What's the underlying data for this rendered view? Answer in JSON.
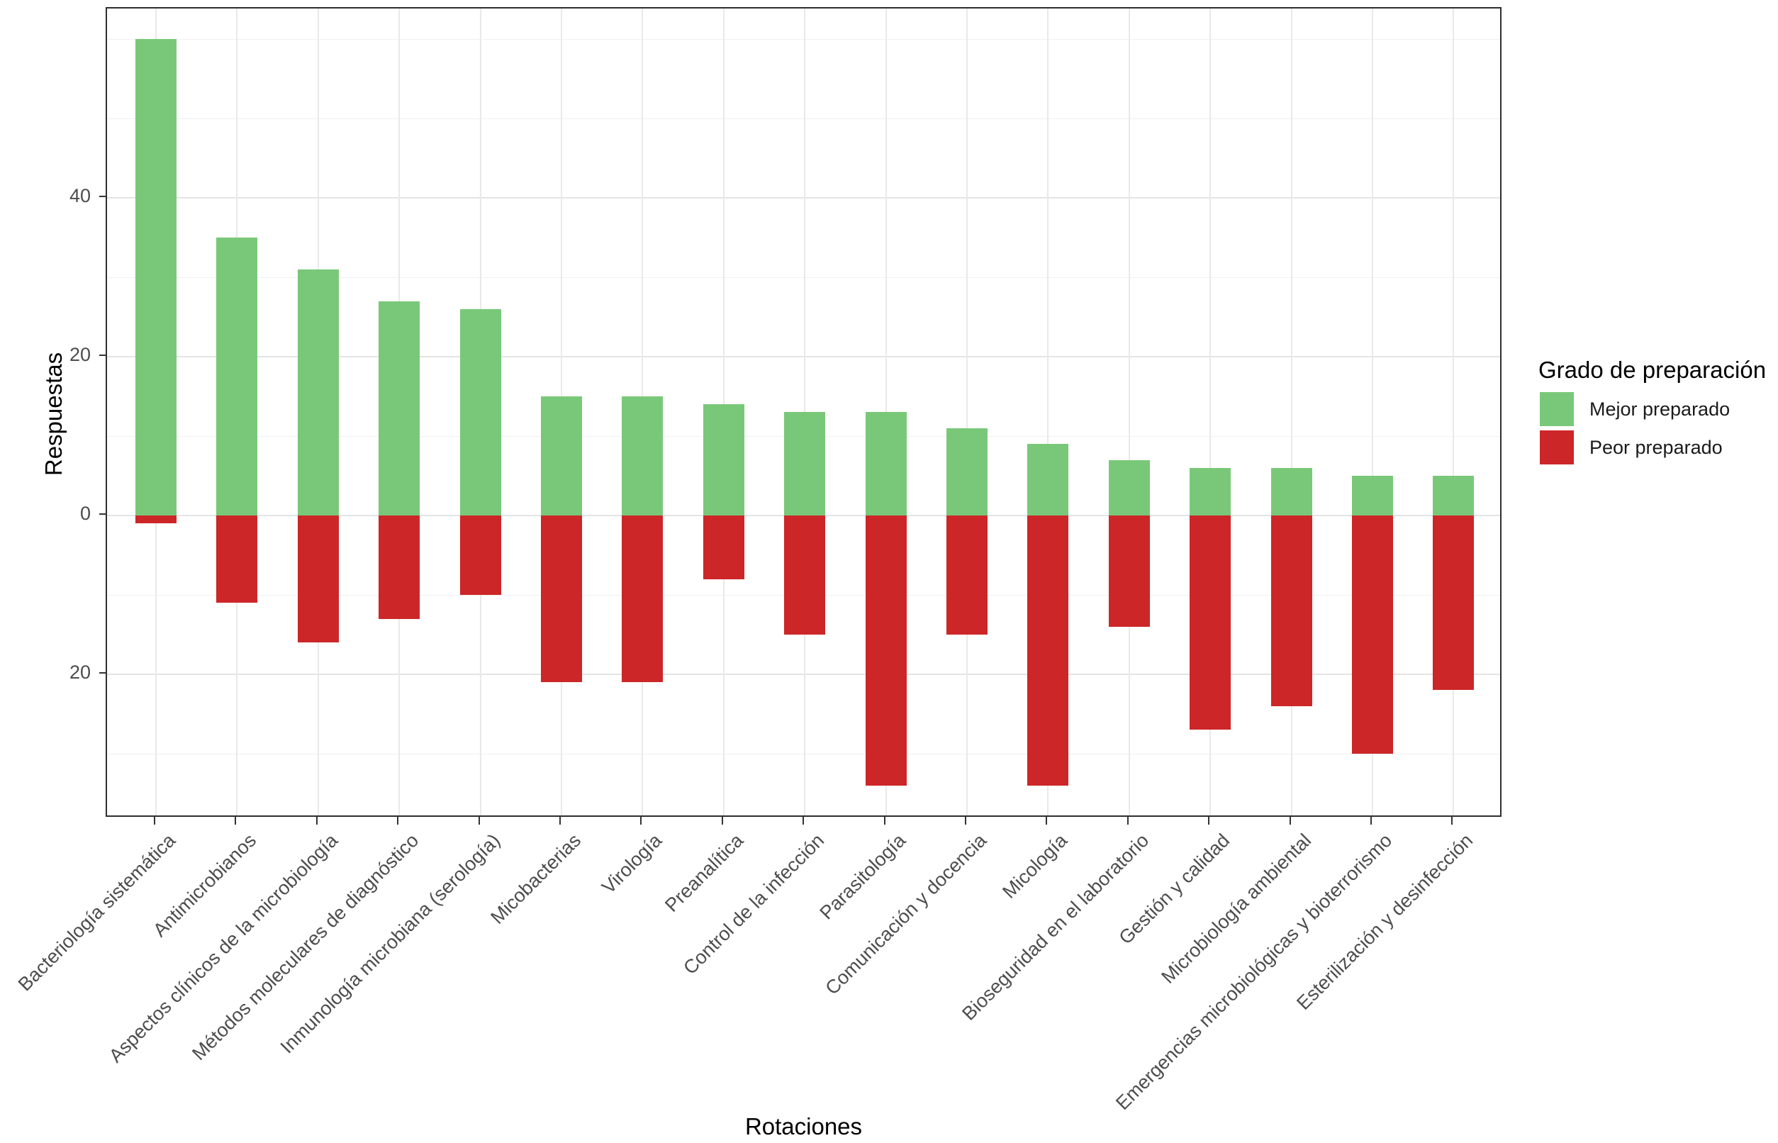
{
  "chart_data": {
    "type": "bar",
    "variant": "diverging-stacked",
    "title": "",
    "xlabel": "Rotaciones",
    "ylabel": "Respuestas",
    "legend_title": "Grado de preparación",
    "legend_position": "right",
    "grid": true,
    "ylim": [
      -38.5,
      63.5
    ],
    "y_ticks": [
      {
        "value": 40,
        "label": "40"
      },
      {
        "value": 20,
        "label": "20"
      },
      {
        "value": 0,
        "label": "0"
      },
      {
        "value": -20,
        "label": "20"
      }
    ],
    "y_gridlines": {
      "major": [
        40,
        20,
        0,
        -20
      ],
      "minor": [
        60,
        50,
        30,
        10,
        -10,
        -30
      ]
    },
    "categories": [
      "Bacteriología sistemática",
      "Antimicrobianos",
      "Aspectos clínicos de la microbiología",
      "Métodos moleculares de diagnóstico",
      "Inmunología microbiana (serología)",
      "Micobacterias",
      "Virología",
      "Preanalítica",
      "Control de la infección",
      "Parasitología",
      "Comunicación y docencia",
      "Micología",
      "Bioseguridad en el laboratorio",
      "Gestión y calidad",
      "Microbiología ambiental",
      "Emergencias microbiológicas y bioterrorismo",
      "Esterilización y desinfección"
    ],
    "series": [
      {
        "name": "Mejor preparado",
        "color": "#79c879",
        "values": [
          60,
          35,
          31,
          27,
          26,
          15,
          15,
          14,
          13,
          13,
          11,
          9,
          7,
          6,
          6,
          5,
          5
        ]
      },
      {
        "name": "Peor preparado",
        "color": "#cc2628",
        "values": [
          -1,
          -11,
          -16,
          -13,
          -10,
          -21,
          -21,
          -8,
          -15,
          -34,
          -15,
          -34,
          -14,
          -27,
          -24,
          -30,
          -22
        ]
      }
    ]
  }
}
